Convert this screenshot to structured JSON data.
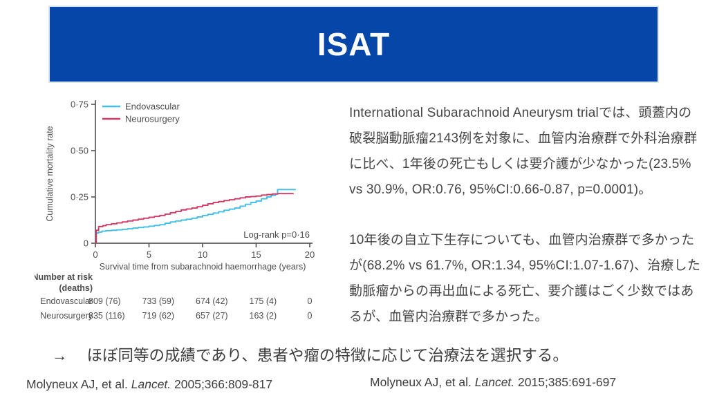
{
  "header": {
    "title": "ISAT",
    "bg_color": "#0546A8"
  },
  "chart_data": {
    "type": "line",
    "step": true,
    "xlabel": "Survival time from subarachnoid haemorrhage (years)",
    "ylabel": "Cumulative mortality rate",
    "xlim": [
      0,
      20
    ],
    "ylim": [
      0,
      0.75
    ],
    "xticks": [
      0,
      5,
      10,
      15,
      20
    ],
    "ytick_vals": [
      0,
      0.25,
      0.5,
      0.75
    ],
    "ytick_labels": [
      "0",
      "0·25",
      "0·50",
      "0·75"
    ],
    "annotation": "Log-rank p=0·16",
    "legend_position": "top-left",
    "grid": false,
    "axis_color": "#5a5a5a",
    "series": [
      {
        "name": "Endovascular",
        "color": "#41BEE8",
        "points": [
          [
            0,
            0
          ],
          [
            0.08,
            0.055
          ],
          [
            0.3,
            0.06
          ],
          [
            0.6,
            0.065
          ],
          [
            1,
            0.068
          ],
          [
            1.5,
            0.07
          ],
          [
            2,
            0.072
          ],
          [
            2.5,
            0.075
          ],
          [
            3,
            0.078
          ],
          [
            3.5,
            0.082
          ],
          [
            4,
            0.085
          ],
          [
            4.5,
            0.088
          ],
          [
            5,
            0.092
          ],
          [
            5.5,
            0.096
          ],
          [
            6,
            0.1
          ],
          [
            6.5,
            0.108
          ],
          [
            7,
            0.115
          ],
          [
            7.5,
            0.12
          ],
          [
            8,
            0.125
          ],
          [
            8.5,
            0.13
          ],
          [
            9,
            0.135
          ],
          [
            9.5,
            0.142
          ],
          [
            10,
            0.15
          ],
          [
            10.5,
            0.156
          ],
          [
            11,
            0.163
          ],
          [
            11.5,
            0.17
          ],
          [
            12,
            0.178
          ],
          [
            12.5,
            0.184
          ],
          [
            13,
            0.19
          ],
          [
            13.5,
            0.2
          ],
          [
            14,
            0.21
          ],
          [
            14.5,
            0.22
          ],
          [
            15,
            0.228
          ],
          [
            15.5,
            0.24
          ],
          [
            16,
            0.25
          ],
          [
            16.4,
            0.258
          ],
          [
            16.8,
            0.265
          ],
          [
            17,
            0.29
          ],
          [
            18.7,
            0.29
          ]
        ]
      },
      {
        "name": "Neurosurgery",
        "color": "#D03A64",
        "points": [
          [
            0,
            0
          ],
          [
            0.08,
            0.07
          ],
          [
            0.3,
            0.09
          ],
          [
            0.7,
            0.095
          ],
          [
            1,
            0.1
          ],
          [
            1.5,
            0.105
          ],
          [
            2,
            0.11
          ],
          [
            2.5,
            0.115
          ],
          [
            3,
            0.12
          ],
          [
            3.5,
            0.125
          ],
          [
            4,
            0.13
          ],
          [
            4.5,
            0.135
          ],
          [
            5,
            0.14
          ],
          [
            5.5,
            0.145
          ],
          [
            6,
            0.15
          ],
          [
            6.5,
            0.157
          ],
          [
            7,
            0.165
          ],
          [
            7.5,
            0.172
          ],
          [
            8,
            0.18
          ],
          [
            8.5,
            0.185
          ],
          [
            9,
            0.19
          ],
          [
            9.5,
            0.197
          ],
          [
            10,
            0.205
          ],
          [
            10.5,
            0.213
          ],
          [
            11,
            0.22
          ],
          [
            11.5,
            0.225
          ],
          [
            12,
            0.23
          ],
          [
            12.5,
            0.235
          ],
          [
            13,
            0.24
          ],
          [
            13.5,
            0.245
          ],
          [
            14,
            0.25
          ],
          [
            14.5,
            0.252
          ],
          [
            15,
            0.255
          ],
          [
            15.5,
            0.26
          ],
          [
            16,
            0.263
          ],
          [
            16.5,
            0.266
          ],
          [
            17,
            0.268
          ],
          [
            18.5,
            0.268
          ]
        ]
      }
    ],
    "at_risk": {
      "header_line1": "Number at risk",
      "header_line2": "(deaths)",
      "rows": [
        {
          "label": "Endovascular",
          "values": [
            "809 (76)",
            "733 (59)",
            "674 (42)",
            "175 (4)",
            "0"
          ]
        },
        {
          "label": "Neurosurgery",
          "values": [
            "835 (116)",
            "719 (62)",
            "657 (27)",
            "163 (2)",
            "0"
          ]
        }
      ]
    }
  },
  "body": {
    "paragraph1": "International Subarachnoid Aneurysm trialでは、頭蓋内の破裂脳動脈瘤2143例を対象に、血管内治療群で外科治療群に比べ、1年後の死亡もしくは要介護が少なかった(23.5% vs 30.9%, OR:0.76, 95%CI:0.66-0.87, p=0.0001)。",
    "paragraph2": "10年後の自立下生存についても、血管内治療群で多かったが(68.2% vs 61.7%, OR:1.34, 95%CI:1.07-1.67)、治療した動脈瘤からの再出血による死亡、要介護はごく少数ではあるが、血管内治療群で多かった。"
  },
  "conclusion": {
    "arrow": "→",
    "text": "ほぼ同等の成績であり、患者や瘤の特徴に応じて治療法を選択する。"
  },
  "citations": [
    {
      "authors": "Molyneux AJ, et al. ",
      "journal": "Lancet.",
      "ref": " 2005;366:809-817"
    },
    {
      "authors": "Molyneux AJ, et al. ",
      "journal": "Lancet.",
      "ref": " 2015;385:691-697"
    }
  ]
}
